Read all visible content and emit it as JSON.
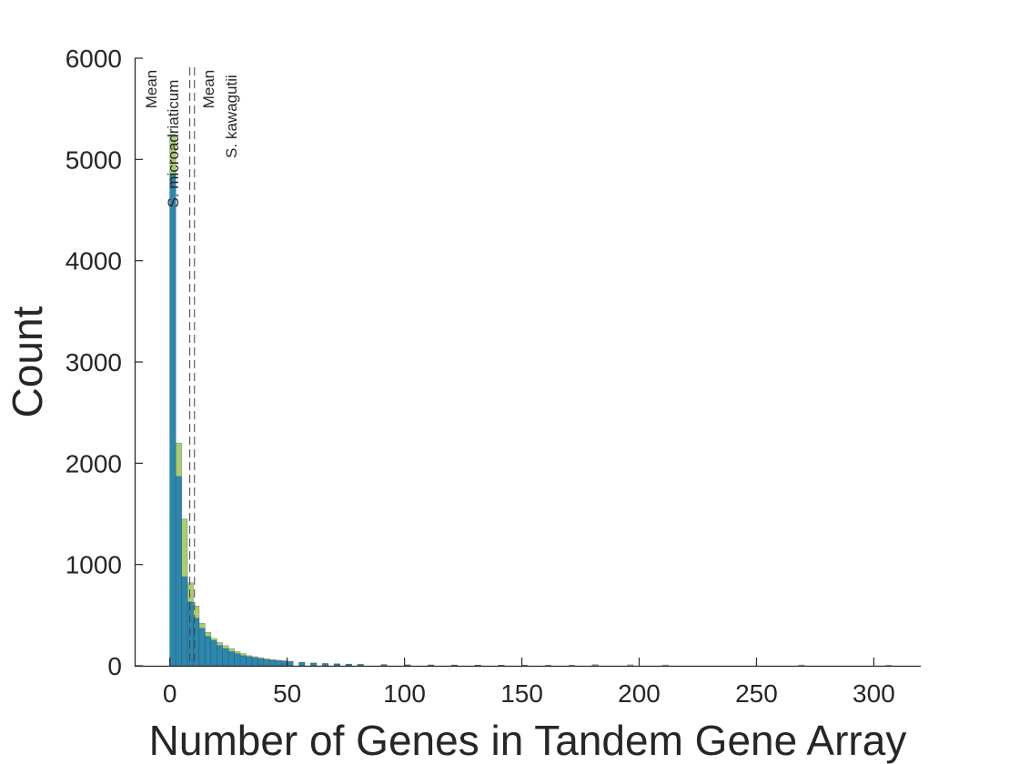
{
  "chart_data": {
    "type": "bar",
    "xlabel": "Number of Genes in Tandem Gene Array",
    "ylabel": "Count",
    "xlim": [
      -15,
      320
    ],
    "ylim": [
      0,
      6000
    ],
    "xticks": [
      0,
      50,
      100,
      150,
      200,
      250,
      300
    ],
    "yticks": [
      0,
      1000,
      2000,
      3000,
      4000,
      5000,
      6000
    ],
    "bin_width": 2.5,
    "colors": {
      "series_a": "#9dc451",
      "series_b": "#1f7fb5",
      "edge": "#2b4f66"
    },
    "series": [
      {
        "bin_starts": [
          0,
          2.5,
          5,
          7.5,
          10,
          12.5,
          15,
          17.5,
          20,
          22.5,
          25,
          27.5,
          30,
          32.5,
          35,
          37.5,
          40,
          42.5,
          45,
          47.5,
          50,
          55,
          60,
          65,
          70,
          75,
          80,
          90,
          100,
          110,
          120,
          130,
          140,
          150,
          160,
          170,
          180,
          195,
          210,
          268,
          305
        ],
        "values": [
          5250,
          2200,
          1450,
          820,
          590,
          420,
          330,
          270,
          230,
          200,
          170,
          140,
          120,
          100,
          90,
          80,
          70,
          60,
          55,
          50,
          45,
          35,
          28,
          24,
          20,
          17,
          15,
          12,
          10,
          9,
          8,
          7,
          6,
          6,
          5,
          5,
          12,
          10,
          8,
          8,
          5
        ]
      },
      {
        "bin_starts": [
          0,
          2.5,
          5,
          7.5,
          10,
          12.5,
          15,
          17.5,
          20,
          22.5,
          25,
          27.5,
          30,
          32.5,
          35,
          37.5,
          40,
          42.5,
          45,
          47.5,
          50,
          55,
          60,
          65,
          70,
          75,
          80,
          90,
          100,
          110,
          120,
          130,
          140,
          150,
          160,
          170,
          180
        ],
        "values": [
          4850,
          1870,
          880,
          630,
          470,
          370,
          290,
          250,
          200,
          170,
          140,
          120,
          100,
          90,
          80,
          70,
          60,
          55,
          50,
          45,
          40,
          32,
          25,
          20,
          18,
          15,
          12,
          10,
          8,
          7,
          6,
          6,
          5,
          4,
          4,
          3,
          3
        ]
      }
    ],
    "mean_lines": [
      {
        "x": 8.5,
        "label_top": "Mean",
        "label_bottom": "S. microadriaticum"
      },
      {
        "x": 10.5,
        "label_top": "Mean",
        "label_bottom": "S. kawagutii"
      }
    ]
  }
}
